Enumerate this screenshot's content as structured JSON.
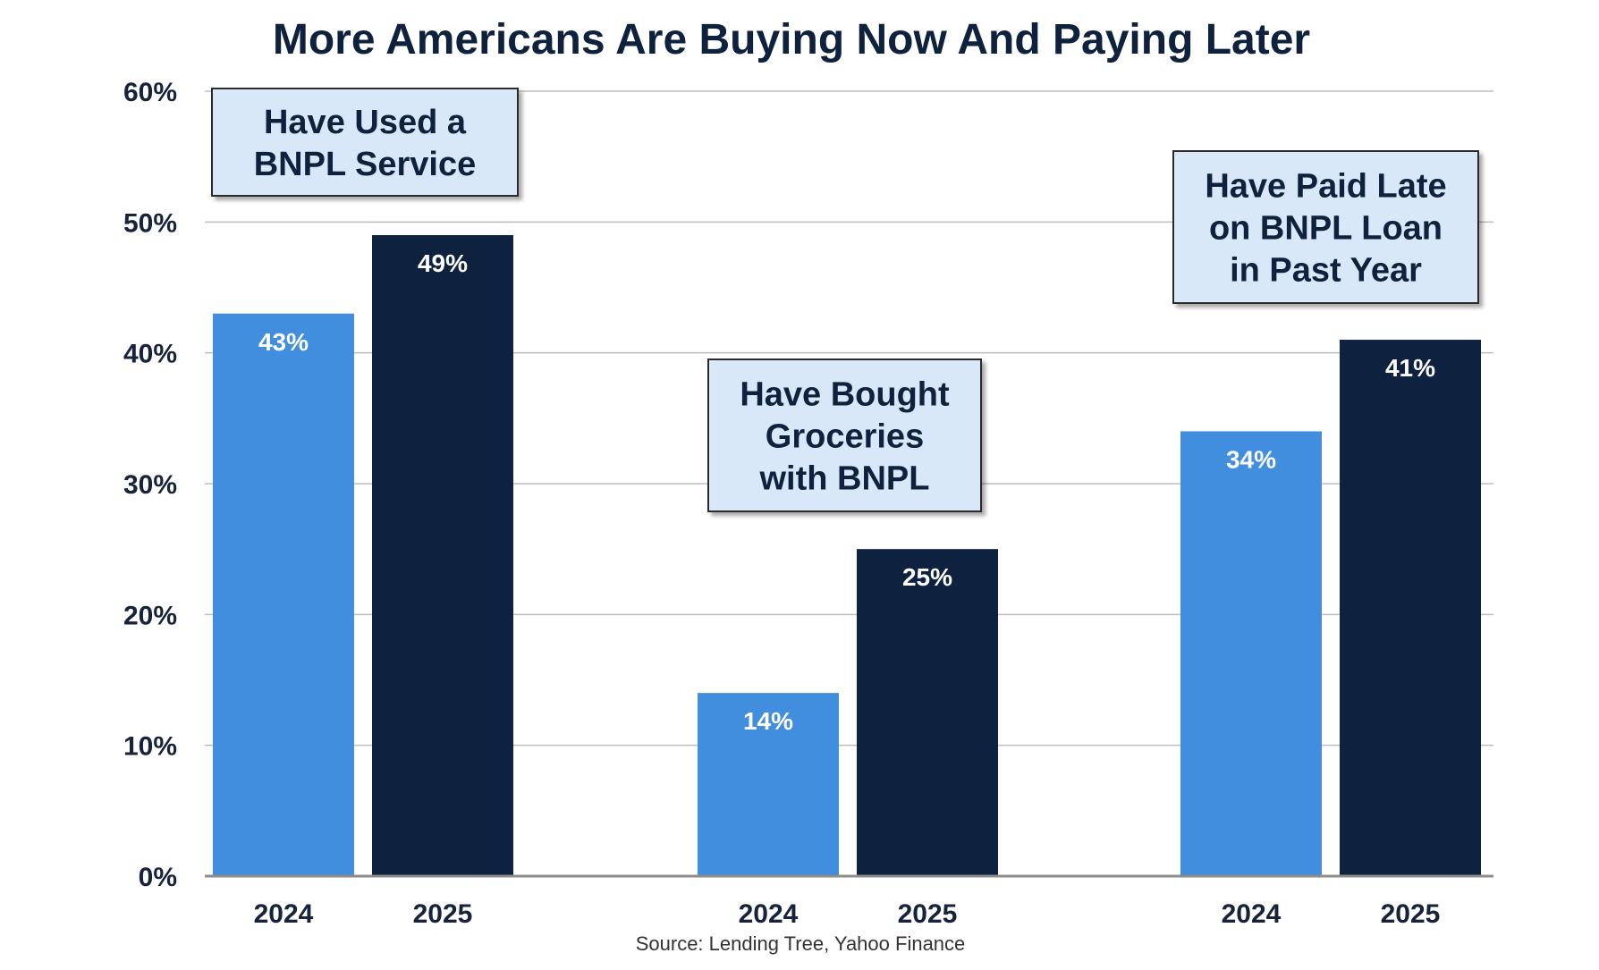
{
  "chart_data": {
    "type": "bar",
    "title": "More Americans Are Buying Now And Paying Later",
    "source": "Source: Lending Tree, Yahoo Finance",
    "xlabel": "",
    "ylabel": "",
    "ylim": [
      0,
      60
    ],
    "yticks": [
      0,
      10,
      20,
      30,
      40,
      50,
      60
    ],
    "ytick_labels": [
      "0%",
      "10%",
      "20%",
      "30%",
      "40%",
      "50%",
      "60%"
    ],
    "grid": true,
    "series_names": [
      "2024",
      "2025"
    ],
    "groups": [
      {
        "label_lines": [
          "Have Used a",
          "BNPL Service"
        ],
        "categories": [
          "2024",
          "2025"
        ],
        "values": [
          43,
          49
        ],
        "value_labels": [
          "43%",
          "49%"
        ]
      },
      {
        "label_lines": [
          "Have Bought",
          "Groceries",
          "with BNPL"
        ],
        "categories": [
          "2024",
          "2025"
        ],
        "values": [
          14,
          25
        ],
        "value_labels": [
          "14%",
          "25%"
        ]
      },
      {
        "label_lines": [
          "Have Paid Late",
          "on BNPL Loan",
          "in Past Year"
        ],
        "categories": [
          "2024",
          "2025"
        ],
        "values": [
          34,
          41
        ],
        "value_labels": [
          "34%",
          "41%"
        ]
      }
    ],
    "colors": {
      "series_2024": "#418DDE",
      "series_2025": "#0E223F",
      "title": "#0F223D",
      "axis_text": "#16233A",
      "gridline": "#BDBDBD",
      "callout_fill": "#D8E8F8",
      "callout_border": "#2B2B2B",
      "bar_label": "#FFFFFF"
    }
  }
}
